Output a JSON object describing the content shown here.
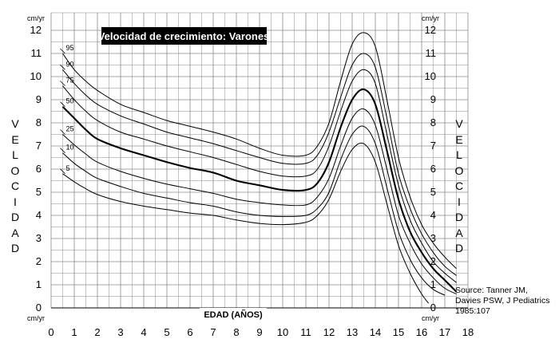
{
  "chart_data": {
    "type": "line",
    "title": "Velocidad de crecimiento: Varones",
    "xlabel": "EDAD (AÑOS)",
    "ylabel": "VELOCIDAD",
    "y_unit": "cm/yr",
    "xlim": [
      0,
      18
    ],
    "ylim": [
      0,
      12
    ],
    "x_ticks": [
      0,
      1,
      2,
      3,
      4,
      5,
      6,
      7,
      8,
      9,
      10,
      11,
      12,
      13,
      14,
      15,
      16,
      17,
      18
    ],
    "y_ticks": [
      0,
      1,
      2,
      3,
      4,
      5,
      6,
      7,
      8,
      9,
      10,
      11,
      12
    ],
    "grid": true,
    "legend": "inline labels at curve start",
    "series": [
      {
        "name": "95",
        "points": [
          [
            0.5,
            11.0
          ],
          [
            1,
            10.3
          ],
          [
            1.5,
            9.8
          ],
          [
            2,
            9.4
          ],
          [
            3,
            8.8
          ],
          [
            4,
            8.45
          ],
          [
            5,
            8.1
          ],
          [
            6,
            7.85
          ],
          [
            7,
            7.6
          ],
          [
            8,
            7.3
          ],
          [
            9,
            6.9
          ],
          [
            10,
            6.6
          ],
          [
            11,
            6.6
          ],
          [
            11.5,
            7.0
          ],
          [
            12,
            8.0
          ],
          [
            12.5,
            9.8
          ],
          [
            13,
            11.4
          ],
          [
            13.5,
            11.9
          ],
          [
            14,
            11.3
          ],
          [
            14.5,
            9.0
          ],
          [
            15,
            6.5
          ],
          [
            15.5,
            4.8
          ],
          [
            16,
            3.6
          ],
          [
            16.5,
            2.8
          ],
          [
            17,
            2.2
          ],
          [
            17.5,
            1.7
          ]
        ]
      },
      {
        "name": "90",
        "points": [
          [
            0.5,
            10.3
          ],
          [
            1,
            9.7
          ],
          [
            1.5,
            9.2
          ],
          [
            2,
            8.8
          ],
          [
            3,
            8.3
          ],
          [
            4,
            7.95
          ],
          [
            5,
            7.6
          ],
          [
            6,
            7.35
          ],
          [
            7,
            7.1
          ],
          [
            8,
            6.8
          ],
          [
            9,
            6.5
          ],
          [
            10,
            6.25
          ],
          [
            11,
            6.25
          ],
          [
            11.5,
            6.6
          ],
          [
            12,
            7.6
          ],
          [
            12.5,
            9.1
          ],
          [
            13,
            10.5
          ],
          [
            13.5,
            11.0
          ],
          [
            14,
            10.4
          ],
          [
            14.5,
            8.2
          ],
          [
            15,
            5.8
          ],
          [
            15.5,
            4.3
          ],
          [
            16,
            3.2
          ],
          [
            16.5,
            2.4
          ],
          [
            17,
            1.8
          ],
          [
            17.5,
            1.4
          ]
        ]
      },
      {
        "name": "75",
        "points": [
          [
            0.5,
            9.6
          ],
          [
            1,
            9.0
          ],
          [
            1.5,
            8.5
          ],
          [
            2,
            8.1
          ],
          [
            3,
            7.6
          ],
          [
            4,
            7.3
          ],
          [
            5,
            7.0
          ],
          [
            6,
            6.75
          ],
          [
            7,
            6.5
          ],
          [
            8,
            6.2
          ],
          [
            9,
            5.9
          ],
          [
            10,
            5.7
          ],
          [
            11,
            5.7
          ],
          [
            11.5,
            6.0
          ],
          [
            12,
            7.0
          ],
          [
            12.5,
            8.5
          ],
          [
            13,
            9.8
          ],
          [
            13.5,
            10.3
          ],
          [
            14,
            9.7
          ],
          [
            14.5,
            7.5
          ],
          [
            15,
            5.3
          ],
          [
            15.5,
            3.8
          ],
          [
            16,
            2.8
          ],
          [
            16.5,
            2.0
          ],
          [
            17,
            1.5
          ],
          [
            17.5,
            1.1
          ]
        ]
      },
      {
        "name": "50",
        "bold": true,
        "points": [
          [
            0.5,
            8.7
          ],
          [
            1,
            8.2
          ],
          [
            1.5,
            7.7
          ],
          [
            2,
            7.3
          ],
          [
            3,
            6.9
          ],
          [
            4,
            6.6
          ],
          [
            5,
            6.3
          ],
          [
            6,
            6.05
          ],
          [
            7,
            5.85
          ],
          [
            8,
            5.5
          ],
          [
            9,
            5.3
          ],
          [
            10,
            5.1
          ],
          [
            11,
            5.1
          ],
          [
            11.5,
            5.4
          ],
          [
            12,
            6.3
          ],
          [
            12.5,
            7.8
          ],
          [
            13,
            9.0
          ],
          [
            13.5,
            9.45
          ],
          [
            14,
            8.8
          ],
          [
            14.5,
            6.8
          ],
          [
            15,
            4.7
          ],
          [
            15.5,
            3.3
          ],
          [
            16,
            2.4
          ],
          [
            16.5,
            1.7
          ],
          [
            17,
            1.2
          ],
          [
            17.5,
            0.7
          ]
        ]
      },
      {
        "name": "25",
        "points": [
          [
            0.5,
            7.5
          ],
          [
            1,
            7.05
          ],
          [
            1.5,
            6.65
          ],
          [
            2,
            6.3
          ],
          [
            3,
            5.9
          ],
          [
            4,
            5.6
          ],
          [
            5,
            5.35
          ],
          [
            6,
            5.15
          ],
          [
            7,
            4.95
          ],
          [
            8,
            4.7
          ],
          [
            9,
            4.55
          ],
          [
            10,
            4.45
          ],
          [
            11,
            4.45
          ],
          [
            11.5,
            4.8
          ],
          [
            12,
            5.6
          ],
          [
            12.5,
            7.0
          ],
          [
            13,
            8.2
          ],
          [
            13.5,
            8.6
          ],
          [
            14,
            7.9
          ],
          [
            14.5,
            6.0
          ],
          [
            15,
            4.0
          ],
          [
            15.5,
            2.8
          ],
          [
            16,
            1.9
          ],
          [
            16.5,
            1.3
          ],
          [
            17,
            0.85
          ],
          [
            17.5,
            0.6
          ]
        ]
      },
      {
        "name": "10",
        "points": [
          [
            0.5,
            6.7
          ],
          [
            1,
            6.25
          ],
          [
            1.5,
            5.9
          ],
          [
            2,
            5.6
          ],
          [
            3,
            5.25
          ],
          [
            4,
            4.95
          ],
          [
            5,
            4.75
          ],
          [
            6,
            4.55
          ],
          [
            7,
            4.4
          ],
          [
            8,
            4.15
          ],
          [
            9,
            4.0
          ],
          [
            10,
            3.95
          ],
          [
            11,
            4.0
          ],
          [
            11.5,
            4.3
          ],
          [
            12,
            5.0
          ],
          [
            12.5,
            6.4
          ],
          [
            13,
            7.5
          ],
          [
            13.5,
            7.85
          ],
          [
            14,
            7.1
          ],
          [
            14.5,
            5.2
          ],
          [
            15,
            3.3
          ],
          [
            15.5,
            2.1
          ],
          [
            16,
            1.3
          ],
          [
            16.5,
            0.8
          ],
          [
            17,
            0.55
          ]
        ]
      },
      {
        "name": "5",
        "points": [
          [
            0.5,
            5.8
          ],
          [
            1,
            5.45
          ],
          [
            1.5,
            5.15
          ],
          [
            2,
            4.9
          ],
          [
            3,
            4.6
          ],
          [
            4,
            4.4
          ],
          [
            5,
            4.25
          ],
          [
            6,
            4.1
          ],
          [
            7,
            4.0
          ],
          [
            8,
            3.8
          ],
          [
            9,
            3.65
          ],
          [
            10,
            3.6
          ],
          [
            11,
            3.7
          ],
          [
            11.5,
            4.0
          ],
          [
            12,
            4.7
          ],
          [
            12.5,
            5.9
          ],
          [
            13,
            6.85
          ],
          [
            13.5,
            7.1
          ],
          [
            14,
            6.3
          ],
          [
            14.5,
            4.5
          ],
          [
            15,
            2.7
          ],
          [
            15.5,
            1.5
          ],
          [
            16,
            0.6
          ],
          [
            16.3,
            0.2
          ]
        ]
      }
    ]
  },
  "title_box": {
    "text": "Velocidad de crecimiento: Varones"
  },
  "axis": {
    "unit_top_left": "cm/yr",
    "unit_top_right": "cm/yr",
    "unit_bottom_left": "cm/yr",
    "unit_bottom_right": "cm/yr",
    "x_title": "EDAD (AÑOS)",
    "side_title_letters": [
      "V",
      "E",
      "L",
      "O",
      "C",
      "I",
      "D",
      "A",
      "D"
    ]
  },
  "source": {
    "text": "Source: Tanner JM,\nDavies PSW, J Pediatrics\n1985:107"
  },
  "colors": {
    "grid": "#8a8a8a",
    "curve": "#000000",
    "title_bg": "#000000",
    "title_fg": "#ffffff"
  }
}
